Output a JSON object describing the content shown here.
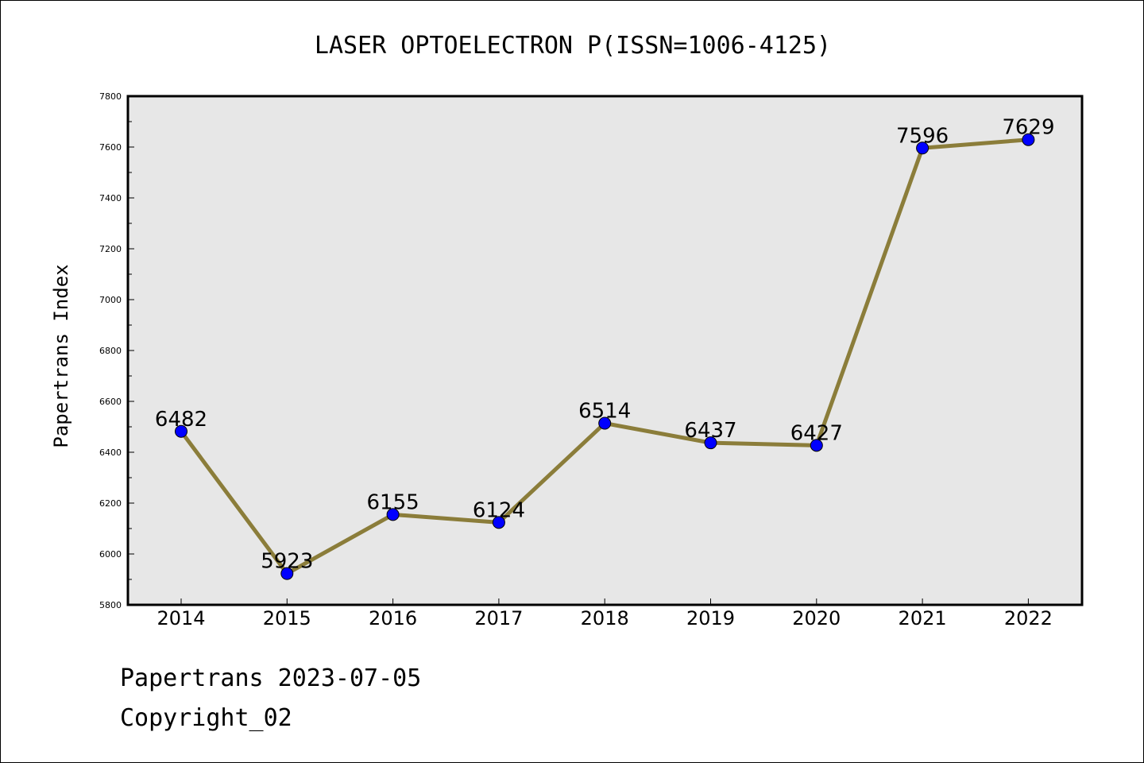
{
  "chart_data": {
    "type": "line",
    "title": "LASER OPTOELECTRON P(ISSN=1006-4125)",
    "xlabel": "",
    "ylabel": "Papertrans Index",
    "categories": [
      "2014",
      "2015",
      "2016",
      "2017",
      "2018",
      "2019",
      "2020",
      "2021",
      "2022"
    ],
    "series": [
      {
        "values": [
          6482,
          5923,
          6155,
          6124,
          6514,
          6437,
          6427,
          7596,
          7629
        ]
      }
    ],
    "data_labels": [
      "6482",
      "5923",
      "6155",
      "6124",
      "6514",
      "6437",
      "6427",
      "7596",
      "7629"
    ],
    "ylim": [
      5800,
      7800
    ],
    "yticks": [
      "5800",
      "6000",
      "6200",
      "6400",
      "6600",
      "6800",
      "7000",
      "7200",
      "7400",
      "7600",
      "7800"
    ],
    "grid": false,
    "legend": "none",
    "colors": {
      "line": "#8b7d3a",
      "marker": "#0000ff",
      "plot_background": "#e7e7e7"
    }
  },
  "footer": {
    "line1": "Papertrans 2023-07-05",
    "line2": "Copyright_02"
  }
}
